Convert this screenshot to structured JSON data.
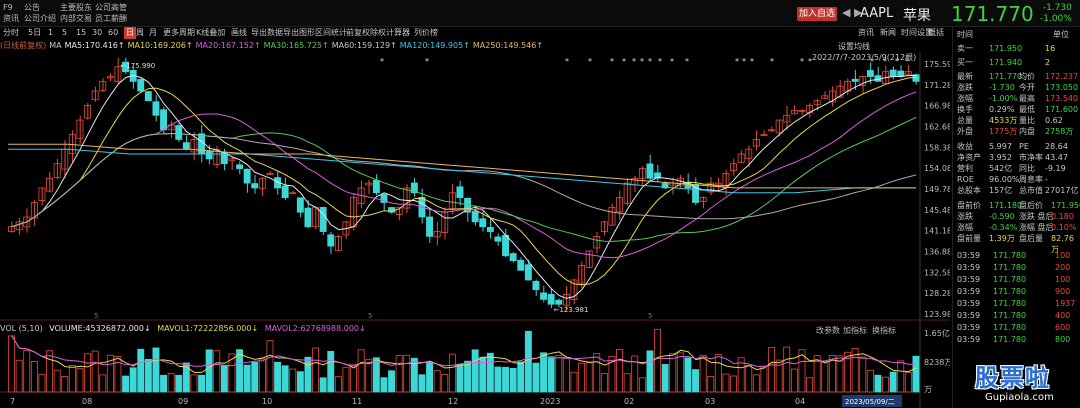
{
  "menu_cols": [
    [
      "F9",
      "资讯"
    ],
    [
      "公告",
      "公司介绍"
    ],
    [
      "主要股东",
      "内部交易"
    ],
    [
      "公司高管",
      "员工薪酬"
    ]
  ],
  "add_button": "加入自选",
  "nav_arrows": "◀ ▶",
  "ticker": "AAPL",
  "name": "苹果",
  "price": "171.770",
  "change": "-1.730",
  "change_pct": "-1.00%",
  "toolbar": [
    {
      "label": "分时",
      "active": false
    },
    {
      "label": "5日",
      "active": false
    },
    {
      "label": "1",
      "active": false
    },
    {
      "label": "5",
      "active": false
    },
    {
      "label": "15",
      "active": false
    },
    {
      "label": "30",
      "active": false
    },
    {
      "label": "60",
      "active": false
    },
    {
      "label": "日",
      "active": true
    },
    {
      "label": "周",
      "active": false
    },
    {
      "label": "月",
      "active": false
    },
    {
      "label": "更多周期",
      "active": false
    },
    {
      "label": "K线叠加",
      "active": false
    },
    {
      "label": "画线",
      "active": false
    },
    {
      "label": "导出数据",
      "active": false
    },
    {
      "label": "导出图形",
      "active": false
    },
    {
      "label": "区间统计",
      "active": false
    },
    {
      "label": "前复权",
      "active": false
    },
    {
      "label": "除权计算器",
      "active": false
    },
    {
      "label": "列价榜",
      "active": false
    },
    {
      "label": "资讯",
      "active": false
    },
    {
      "label": "新闻",
      "active": false
    },
    {
      "label": "时间设置",
      "active": false
    },
    {
      "label": "概括",
      "active": false
    }
  ],
  "ma_row": [
    {
      "text": "(日线前复权)",
      "color": "#d05a3c"
    },
    {
      "text": "MA",
      "color": "#c8c8c8"
    },
    {
      "text": "MA5:170.416↑",
      "color": "#e8e8e8"
    },
    {
      "text": "MA10:169.206↑",
      "color": "#e8d84a"
    },
    {
      "text": "MA20:167.152↑",
      "color": "#d660d6"
    },
    {
      "text": "MA30:165.725↑",
      "color": "#58c858"
    },
    {
      "text": "MA60:159.129↑",
      "color": "#c8c8c8"
    },
    {
      "text": "MA120:149.905↑",
      "color": "#3cc8e8"
    },
    {
      "text": "MA250:149.546↑",
      "color": "#e8b860"
    }
  ],
  "chart_labels": {
    "settings": "设置均线",
    "range": "2022/7/7-2023/5/9(212根)",
    "high": "175.990",
    "low": "123.981"
  },
  "price_axis": [
    "175.590",
    "171.289",
    "166.989",
    "162.688",
    "158.387",
    "154.086",
    "149.785",
    "145.485",
    "141.184",
    "136.883",
    "132.582",
    "128.281",
    "123.981"
  ],
  "date_axis": [
    "7",
    "08",
    "09",
    "10",
    "11",
    "12",
    "2023",
    "02",
    "03",
    "04"
  ],
  "cursor_date": "2023/05/09/二",
  "vol": {
    "label": "VOL (5,10)",
    "volume": "VOLUME:45326872.000↓",
    "mavol1": "MAVOL1:72222856.000↓",
    "mavol2": "MAVOL2:62768988.000↓",
    "buttons": [
      "改参数",
      "加指标",
      "换指标"
    ],
    "axis": [
      "1.65亿",
      "8238万",
      "万"
    ]
  },
  "right_panel": {
    "header": [
      "时间",
      "单位"
    ],
    "ask": {
      "label": "卖一",
      "price": "171.950",
      "vol": "16"
    },
    "bid": {
      "label": "买一",
      "price": "171.940",
      "vol": "2"
    },
    "stats": [
      {
        "l1": "最新",
        "v1": "171.770",
        "c1": "#3fd23f",
        "l2": "均价",
        "v2": "172.237",
        "c2": "#e84c3c"
      },
      {
        "l1": "涨跌",
        "v1": "-1.730",
        "c1": "#3fd23f",
        "l2": "今开",
        "v2": "173.050",
        "c2": "#3fd23f"
      },
      {
        "l1": "涨幅",
        "v1": "-1.00%",
        "c1": "#3fd23f",
        "l2": "最高",
        "v2": "173.540",
        "c2": "#e84c3c"
      },
      {
        "l1": "换手",
        "v1": "0.29%",
        "c1": "#c8c8c8",
        "l2": "最低",
        "v2": "171.600",
        "c2": "#3fd23f"
      },
      {
        "l1": "总量",
        "v1": "4533万",
        "c1": "#e8d84a",
        "l2": "量比",
        "v2": "0.62",
        "c2": "#c8c8c8"
      },
      {
        "l1": "外盘",
        "v1": "1775万",
        "c1": "#e84c3c",
        "l2": "内盘",
        "v2": "2758万",
        "c2": "#3fd23f"
      }
    ],
    "fund": [
      {
        "l1": "收益",
        "v1": "5.997",
        "l2": "PE",
        "v2": "28.64"
      },
      {
        "l1": "净资产",
        "v1": "3.952",
        "l2": "市净率",
        "v2": "43.47"
      },
      {
        "l1": "营利",
        "v1": "542亿",
        "l2": "同比",
        "v2": "-9.19"
      },
      {
        "l1": "ROE",
        "v1": "96.00%",
        "l2": "周息率",
        "v2": "-"
      },
      {
        "l1": "总股本",
        "v1": "157亿",
        "l2": "总市值",
        "v2": "27017亿"
      }
    ],
    "ext": [
      {
        "l1": "盘前价",
        "v1": "171.180",
        "c1": "#3fd23f",
        "l2": "盘后价",
        "v2": "171.950",
        "c2": "#3fd23f"
      },
      {
        "l1": "涨跌",
        "v1": "-0.590",
        "c1": "#3fd23f",
        "l2": "涨跌 盘后",
        "v2": "0.180",
        "c2": "#e84c3c"
      },
      {
        "l1": "涨幅",
        "v1": "-0.34%",
        "c1": "#3fd23f",
        "l2": "涨幅 盘后",
        "v2": "0.10%",
        "c2": "#e84c3c"
      },
      {
        "l1": "盘前量",
        "v1": "1.39万",
        "c1": "#e8d84a",
        "l2": "盘后量",
        "v2": "82.76万",
        "c2": "#e8d84a"
      }
    ],
    "ticks": [
      {
        "t": "03:59",
        "p": "171.780",
        "v": "100",
        "vc": "#e84c3c"
      },
      {
        "t": "03:59",
        "p": "171.780",
        "v": "200",
        "vc": "#e84c3c"
      },
      {
        "t": "03:59",
        "p": "171.780",
        "v": "100",
        "vc": "#e84c3c"
      },
      {
        "t": "03:59",
        "p": "171.780",
        "v": "900",
        "vc": "#e84c3c"
      },
      {
        "t": "03:59",
        "p": "171.780",
        "v": "1937",
        "vc": "#e84c3c"
      },
      {
        "t": "03:59",
        "p": "171.780",
        "v": "400",
        "vc": "#e84c3c"
      },
      {
        "t": "03:59",
        "p": "171.780",
        "v": "600",
        "vc": "#e84c3c"
      },
      {
        "t": "03:59",
        "p": "171.780",
        "v": "800",
        "vc": "#3fd23f"
      }
    ]
  },
  "watermark": "股票啦",
  "watermark_url": "Gupiaola.com",
  "chart_data": {
    "type": "candlestick",
    "title": "AAPL 日线",
    "ylim": [
      123.981,
      175.99
    ],
    "close_series_estimated": [
      142,
      143,
      144,
      147,
      150,
      152,
      155,
      158,
      161,
      164,
      167,
      170,
      172,
      173,
      175,
      174,
      172,
      170,
      168,
      165,
      162,
      163,
      160,
      158,
      160,
      157,
      156,
      158,
      155,
      156,
      154,
      151,
      150,
      152,
      153,
      150,
      148,
      149,
      145,
      142,
      146,
      141,
      138,
      140,
      143,
      148,
      150,
      151,
      149,
      147,
      145,
      146,
      150,
      149,
      144,
      140,
      141,
      145,
      149,
      148,
      145,
      143,
      142,
      141,
      139,
      136,
      135,
      133,
      131,
      129,
      127,
      126,
      126,
      128,
      131,
      134,
      137,
      140,
      143,
      146,
      148,
      151,
      152,
      154,
      152,
      152,
      150,
      151,
      152,
      150,
      147,
      148,
      151,
      151,
      153,
      155,
      157,
      158,
      160,
      161,
      162,
      164,
      165,
      166,
      166,
      167,
      168,
      169,
      170,
      171,
      172,
      172,
      173,
      173,
      172,
      174,
      173,
      173,
      174,
      172
    ],
    "ma120_estimated": [
      158,
      158,
      157,
      157,
      157,
      156,
      155,
      154,
      153,
      152,
      151,
      150,
      149,
      149,
      150,
      150
    ],
    "ma250_estimated": [
      159,
      159,
      158,
      158,
      157,
      157,
      156,
      155,
      154,
      153,
      152,
      151,
      150,
      150,
      150,
      150
    ]
  }
}
